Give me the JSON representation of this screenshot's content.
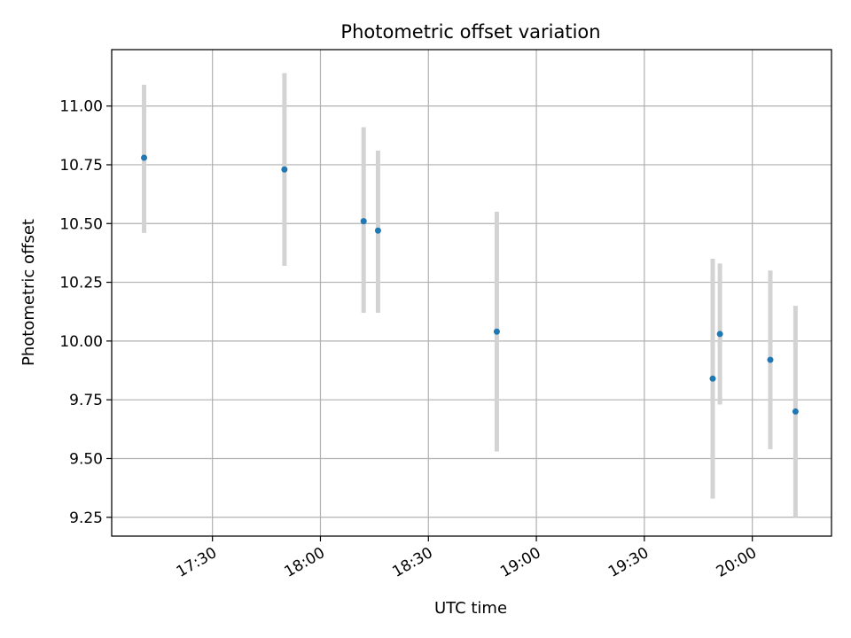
{
  "chart_data": {
    "type": "scatter",
    "title": "Photometric offset variation",
    "xlabel": "UTC time",
    "ylabel": "Photometric offset",
    "x_axis_type": "time",
    "xlim": [
      "17:02",
      "20:22"
    ],
    "ylim": [
      9.17,
      11.24
    ],
    "xticks": [
      "17:30",
      "18:00",
      "18:30",
      "19:00",
      "19:30",
      "20:00"
    ],
    "yticks": [
      "9.25",
      "9.50",
      "9.75",
      "10.00",
      "10.25",
      "10.50",
      "10.75",
      "11.00"
    ],
    "grid": true,
    "colors": {
      "point": "#1f77b4",
      "errorbar": "#d3d3d3",
      "grid": "#b0b0b0"
    },
    "series": [
      {
        "points": [
          {
            "x": "17:11",
            "y": 10.78,
            "ylow": 10.46,
            "yhigh": 11.09
          },
          {
            "x": "17:50",
            "y": 10.73,
            "ylow": 10.32,
            "yhigh": 11.14
          },
          {
            "x": "18:12",
            "y": 10.51,
            "ylow": 10.12,
            "yhigh": 10.91
          },
          {
            "x": "18:16",
            "y": 10.47,
            "ylow": 10.12,
            "yhigh": 10.81
          },
          {
            "x": "18:49",
            "y": 10.04,
            "ylow": 9.53,
            "yhigh": 10.55
          },
          {
            "x": "19:49",
            "y": 9.84,
            "ylow": 9.33,
            "yhigh": 10.35
          },
          {
            "x": "19:51",
            "y": 10.03,
            "ylow": 9.73,
            "yhigh": 10.33
          },
          {
            "x": "20:05",
            "y": 9.92,
            "ylow": 9.54,
            "yhigh": 10.3
          },
          {
            "x": "20:12",
            "y": 9.7,
            "ylow": 9.25,
            "yhigh": 10.15
          }
        ]
      }
    ]
  }
}
